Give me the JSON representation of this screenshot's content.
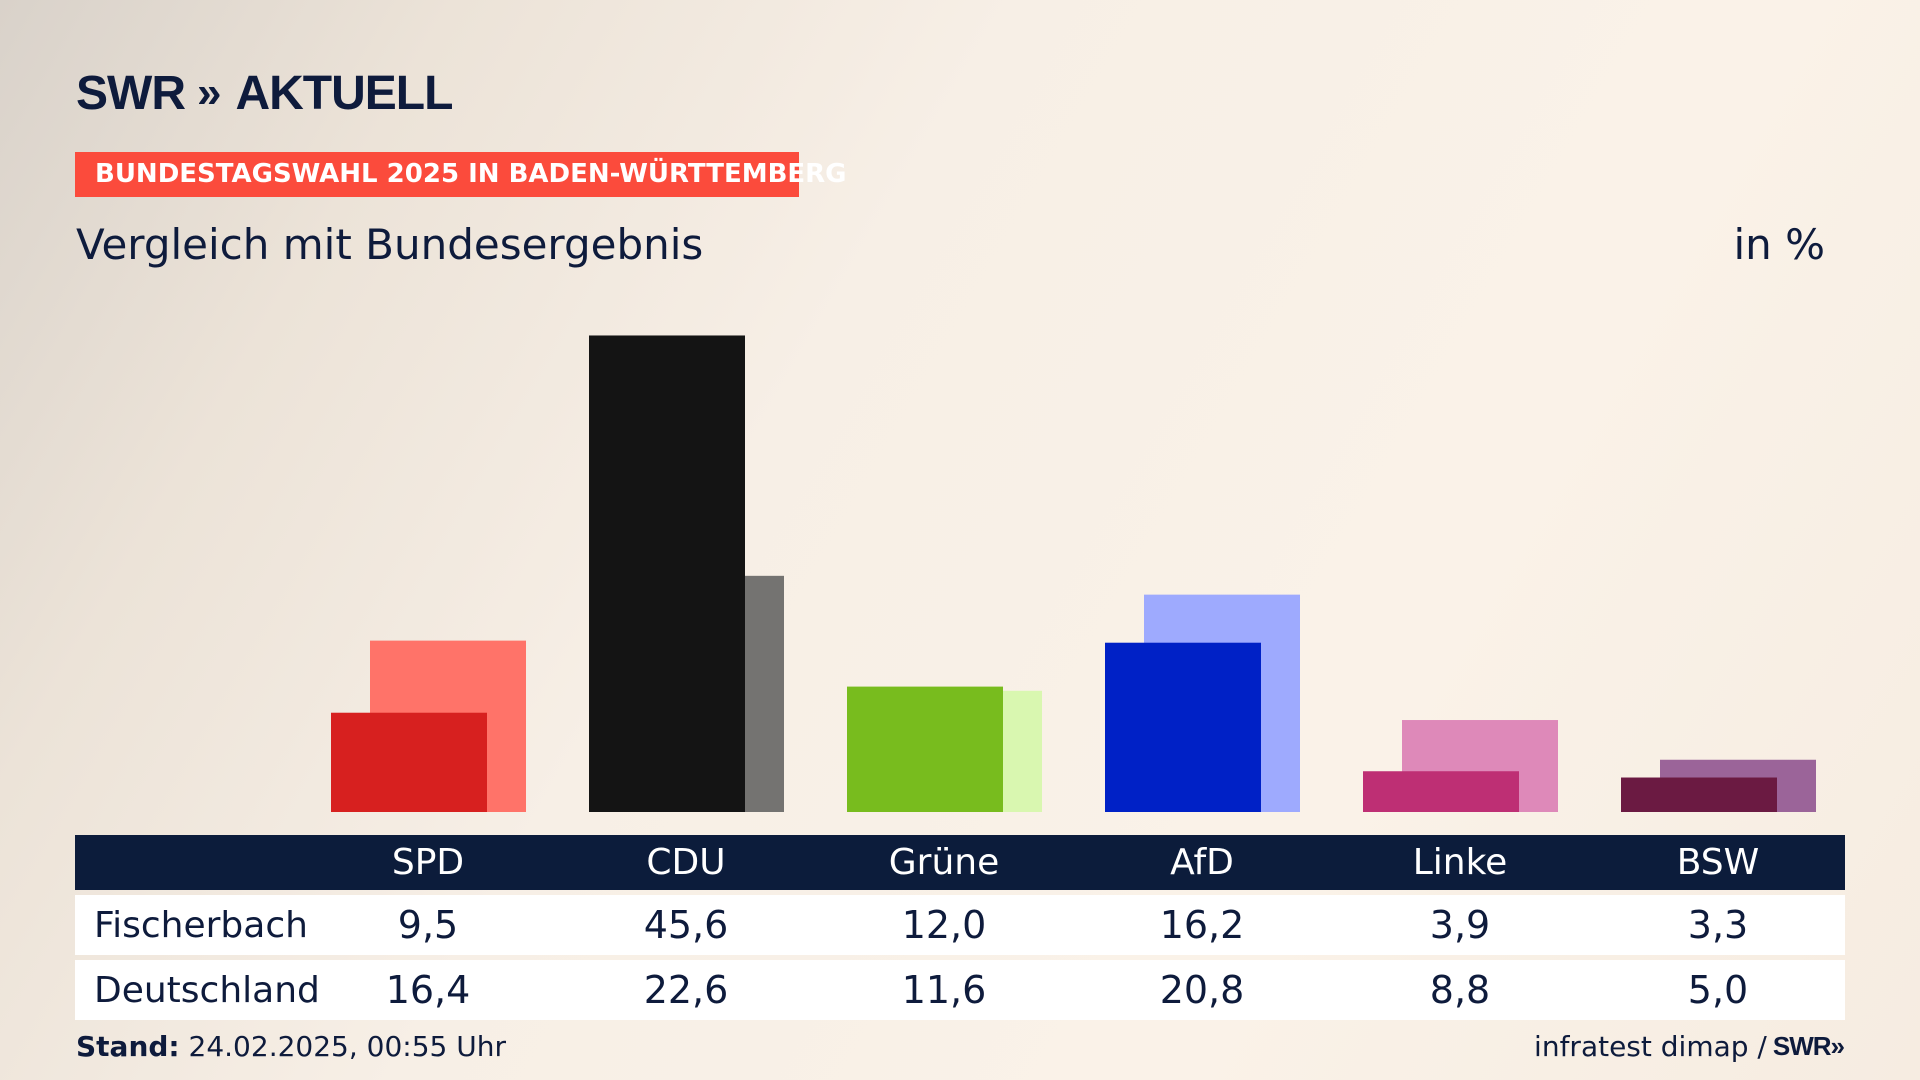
{
  "header": {
    "logo_swr": "SWR",
    "logo_chevrons": "»",
    "logo_aktuell": "AKTUELL",
    "badge": "BUNDESTAGSWAHL 2025 IN BADEN-WÜRTTEMBERG",
    "subtitle": "Vergleich mit Bundesergebnis",
    "unit": "in %"
  },
  "chart_data": {
    "type": "bar",
    "categories": [
      "SPD",
      "CDU",
      "Grüne",
      "AfD",
      "Linke",
      "BSW"
    ],
    "series": [
      {
        "name": "Fischerbach",
        "values": [
          9.5,
          45.6,
          12.0,
          16.2,
          3.9,
          3.3
        ],
        "display": [
          "9,5",
          "45,6",
          "12,0",
          "16,2",
          "3,9",
          "3,3"
        ],
        "colors": [
          "#d7201f",
          "#141414",
          "#78bc1e",
          "#0021c6",
          "#be2f74",
          "#6b1a42"
        ]
      },
      {
        "name": "Deutschland",
        "values": [
          16.4,
          22.6,
          11.6,
          20.8,
          8.8,
          5.0
        ],
        "display": [
          "16,4",
          "22,6",
          "11,6",
          "20,8",
          "8,8",
          "5,0"
        ],
        "colors": [
          "#ff7369",
          "#747371",
          "#d9f7b0",
          "#9eaafe",
          "#de89b9",
          "#9b6499"
        ]
      }
    ],
    "ylim": [
      0,
      50
    ]
  },
  "footer": {
    "stand_label": "Stand:",
    "stand_value": "24.02.2025, 00:55 Uhr",
    "source": "infratest dimap /",
    "source_logo": "SWR»"
  }
}
